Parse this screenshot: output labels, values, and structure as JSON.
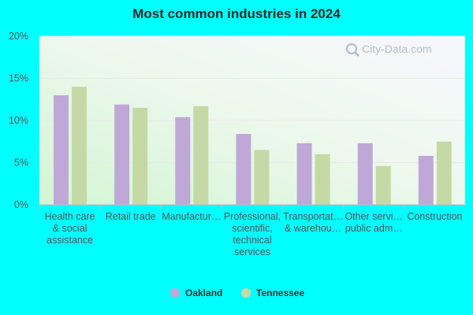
{
  "chart_data": {
    "type": "bar",
    "title": "Most common industries in 2024",
    "xlabel": "",
    "ylabel": "",
    "categories": [
      [
        "Health care",
        "& social",
        "assistance"
      ],
      [
        "Retail trade"
      ],
      [
        "Manufactur…"
      ],
      [
        "Professional,",
        "scientific,",
        "technical",
        "services"
      ],
      [
        "Transportat…",
        "& warehou…"
      ],
      [
        "Other servi…",
        "public adm…"
      ],
      [
        "Construction"
      ]
    ],
    "series": [
      {
        "name": "Oakland",
        "color": "#bfa8d8",
        "values": [
          13.0,
          11.9,
          10.4,
          8.4,
          7.3,
          7.3,
          5.8
        ]
      },
      {
        "name": "Tennessee",
        "color": "#c5d9a6",
        "values": [
          14.0,
          11.5,
          11.7,
          6.5,
          6.0,
          4.6,
          7.5
        ]
      }
    ],
    "ylim": [
      0,
      20
    ],
    "yticks": [
      {
        "value": 0,
        "label": "0%"
      },
      {
        "value": 5,
        "label": "5%"
      },
      {
        "value": 10,
        "label": "10%"
      },
      {
        "value": 15,
        "label": "15%"
      },
      {
        "value": 20,
        "label": "20%"
      }
    ],
    "grid": true,
    "legend_position": "bottom-center"
  },
  "watermark": {
    "text": "City-Data.com",
    "icon": "magnifier-icon"
  }
}
